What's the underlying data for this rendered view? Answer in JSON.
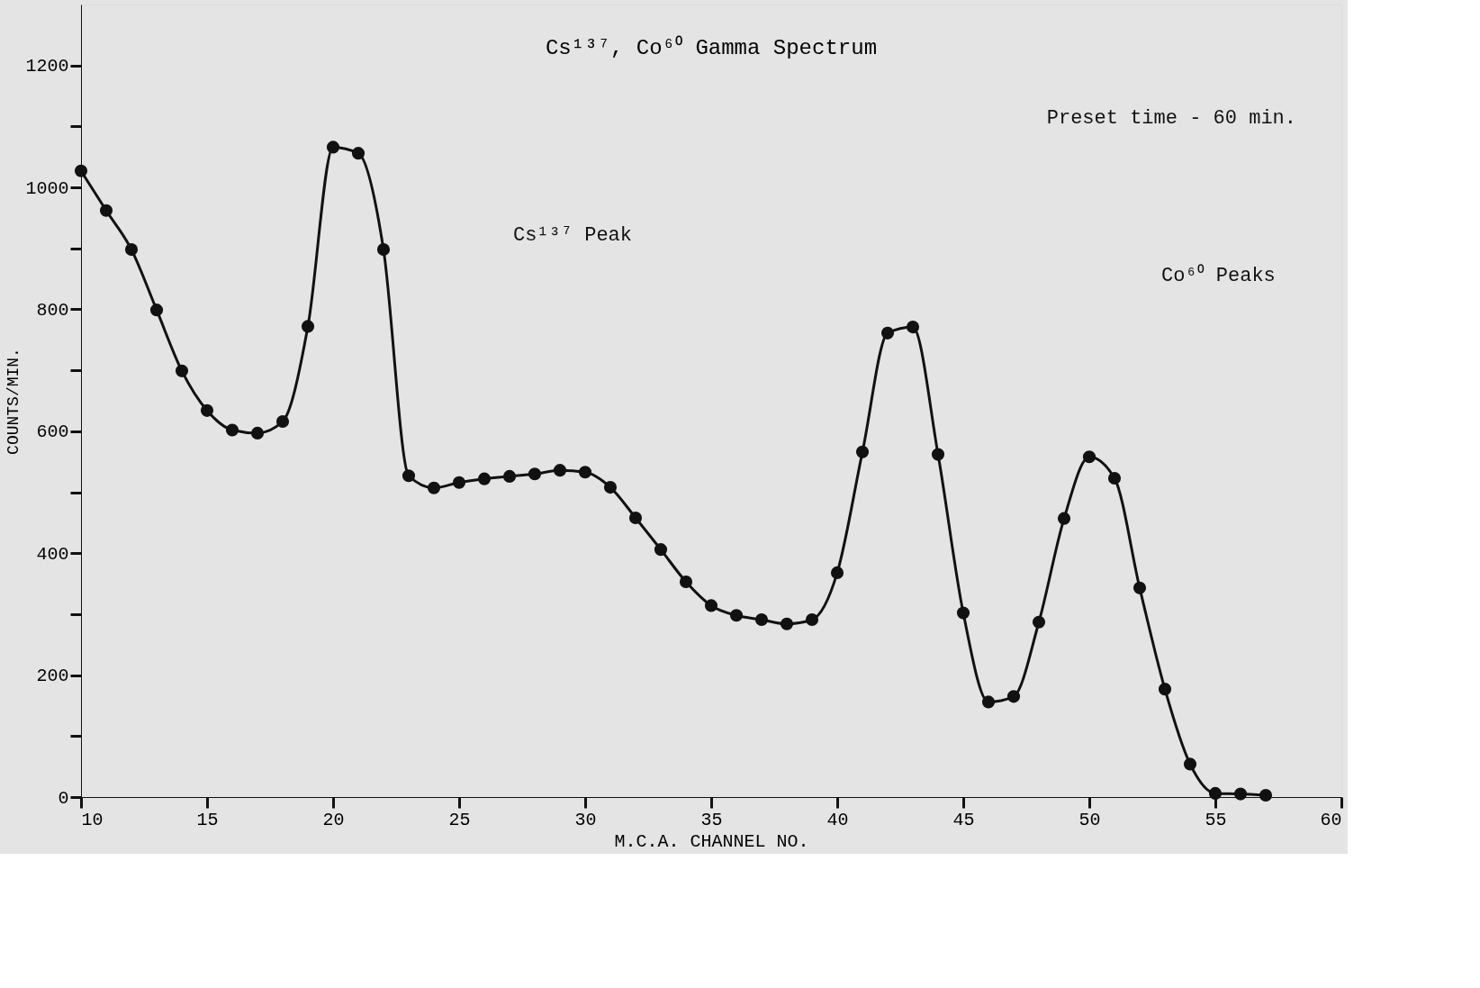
{
  "chart_data": {
    "type": "line",
    "title": "Cs¹³⁷, Co⁶⁰ Gamma Spectrum",
    "xlabel": "M.C.A. CHANNEL NO.",
    "ylabel": "COUNTS/MIN.",
    "annotations": [
      "Preset time - 60 min.",
      "Cs¹³⁷ Peak",
      "Co⁶⁰ Peaks"
    ],
    "x": [
      10,
      11,
      12,
      13,
      14,
      15,
      16,
      17,
      18,
      19,
      20,
      21,
      22,
      23,
      24,
      25,
      26,
      27,
      28,
      29,
      30,
      31,
      32,
      33,
      34,
      35,
      36,
      37,
      38,
      39,
      40,
      41,
      42,
      43,
      44,
      45,
      46,
      47,
      48,
      49,
      50,
      51,
      52,
      53,
      54,
      55,
      56,
      57
    ],
    "series": [
      {
        "color": "#111111",
        "values": [
          1027,
          962,
          898,
          799,
          699,
          634,
          602,
          597,
          616,
          772,
          1066,
          1056,
          898,
          527,
          507,
          516,
          522,
          526,
          530,
          536,
          533,
          508,
          458,
          406,
          353,
          314,
          298,
          291,
          284,
          291,
          368,
          566,
          761,
          771,
          562,
          302,
          156,
          165,
          287,
          457,
          558,
          523,
          343,
          177,
          54,
          6,
          5,
          3
        ]
      }
    ],
    "xlim": [
      10,
      60
    ],
    "xticks": [
      10,
      15,
      20,
      25,
      30,
      35,
      40,
      45,
      50,
      55,
      60
    ],
    "ylim": [
      0,
      1300
    ],
    "yticks": [
      0,
      {
        "value": 100,
        "label": null
      },
      200,
      {
        "value": 300,
        "label": null
      },
      400,
      {
        "value": 500,
        "label": null
      },
      600,
      {
        "value": 700,
        "label": null
      },
      800,
      {
        "value": 900,
        "label": null
      },
      1000,
      {
        "value": 1100,
        "label": null
      },
      1200
    ],
    "grid": false,
    "marker": "circle",
    "line_style": "solid"
  }
}
